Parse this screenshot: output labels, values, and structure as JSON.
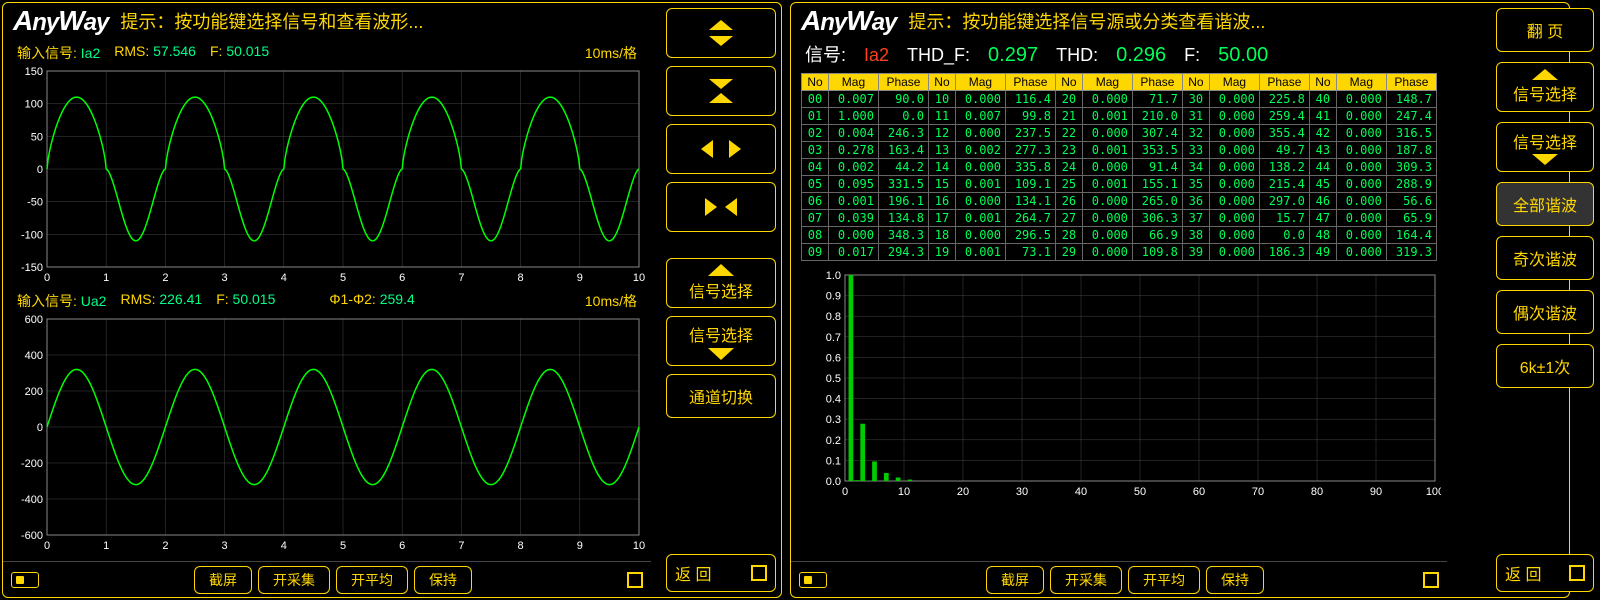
{
  "logo": "AnyWay",
  "left": {
    "hint": "提示：按功能键选择信号和查看波形...",
    "chart1": {
      "sig_label": "输入信号:",
      "sig": "Ia2",
      "rms_label": "RMS:",
      "rms": "57.546",
      "f_label": "F:",
      "f": "50.015",
      "timebase": "10ms/格",
      "ylim": [
        -150,
        150
      ],
      "ytick": 50,
      "xlim": [
        0,
        10
      ],
      "xtick": 1,
      "trace_color": "#00ff00",
      "type": "custom-wave",
      "amplitude": 110,
      "periods": 5
    },
    "chart2": {
      "sig_label": "输入信号:",
      "sig": "Ua2",
      "rms_label": "RMS:",
      "rms": "226.41",
      "f_label": "F:",
      "f": "50.015",
      "phase_label": "Φ1-Φ2:",
      "phase": "259.4",
      "timebase": "10ms/格",
      "ylim": [
        -600,
        600
      ],
      "ytick": 200,
      "xlim": [
        0,
        10
      ],
      "xtick": 1,
      "trace_color": "#00ff00",
      "type": "sine",
      "amplitude": 320,
      "periods": 5
    },
    "bottom": {
      "b1": "截屏",
      "b2": "开采集",
      "b3": "开平均",
      "b4": "保持"
    }
  },
  "mid_btns": {
    "sig_sel": "信号选择",
    "chan_sw": "通道切换",
    "back": "返    回"
  },
  "right": {
    "hint": "提示：按功能键选择信号源或分类查看谐波...",
    "summary": {
      "sig_lbl": "信号:",
      "sig": "Ia2",
      "thdf_lbl": "THD_F:",
      "thdf": "0.297",
      "thd_lbl": "THD:",
      "thd": "0.296",
      "f_lbl": "F:",
      "f": "50.00"
    },
    "table": {
      "cols": [
        "No",
        "Mag",
        "Phase"
      ],
      "groups": 5,
      "rows": [
        [
          [
            "00",
            "0.007",
            "90.0"
          ],
          [
            "10",
            "0.000",
            "116.4"
          ],
          [
            "20",
            "0.000",
            "71.7"
          ],
          [
            "30",
            "0.000",
            "225.8"
          ],
          [
            "40",
            "0.000",
            "148.7"
          ]
        ],
        [
          [
            "01",
            "1.000",
            "0.0"
          ],
          [
            "11",
            "0.007",
            "99.8"
          ],
          [
            "21",
            "0.001",
            "210.0"
          ],
          [
            "31",
            "0.000",
            "259.4"
          ],
          [
            "41",
            "0.000",
            "247.4"
          ]
        ],
        [
          [
            "02",
            "0.004",
            "246.3"
          ],
          [
            "12",
            "0.000",
            "237.5"
          ],
          [
            "22",
            "0.000",
            "307.4"
          ],
          [
            "32",
            "0.000",
            "355.4"
          ],
          [
            "42",
            "0.000",
            "316.5"
          ]
        ],
        [
          [
            "03",
            "0.278",
            "163.4"
          ],
          [
            "13",
            "0.002",
            "277.3"
          ],
          [
            "23",
            "0.001",
            "353.5"
          ],
          [
            "33",
            "0.000",
            "49.7"
          ],
          [
            "43",
            "0.000",
            "187.8"
          ]
        ],
        [
          [
            "04",
            "0.002",
            "44.2"
          ],
          [
            "14",
            "0.000",
            "335.8"
          ],
          [
            "24",
            "0.000",
            "91.4"
          ],
          [
            "34",
            "0.000",
            "138.2"
          ],
          [
            "44",
            "0.000",
            "309.3"
          ]
        ],
        [
          [
            "05",
            "0.095",
            "331.5"
          ],
          [
            "15",
            "0.001",
            "109.1"
          ],
          [
            "25",
            "0.001",
            "155.1"
          ],
          [
            "35",
            "0.000",
            "215.4"
          ],
          [
            "45",
            "0.000",
            "288.9"
          ]
        ],
        [
          [
            "06",
            "0.001",
            "196.1"
          ],
          [
            "16",
            "0.000",
            "134.1"
          ],
          [
            "26",
            "0.000",
            "265.0"
          ],
          [
            "36",
            "0.000",
            "297.0"
          ],
          [
            "46",
            "0.000",
            "56.6"
          ]
        ],
        [
          [
            "07",
            "0.039",
            "134.8"
          ],
          [
            "17",
            "0.001",
            "264.7"
          ],
          [
            "27",
            "0.000",
            "306.3"
          ],
          [
            "37",
            "0.000",
            "15.7"
          ],
          [
            "47",
            "0.000",
            "65.9"
          ]
        ],
        [
          [
            "08",
            "0.000",
            "348.3"
          ],
          [
            "18",
            "0.000",
            "296.5"
          ],
          [
            "28",
            "0.000",
            "66.9"
          ],
          [
            "38",
            "0.000",
            "0.0"
          ],
          [
            "48",
            "0.000",
            "164.4"
          ]
        ],
        [
          [
            "09",
            "0.017",
            "294.3"
          ],
          [
            "19",
            "0.001",
            "73.1"
          ],
          [
            "29",
            "0.000",
            "109.8"
          ],
          [
            "39",
            "0.000",
            "186.3"
          ],
          [
            "49",
            "0.000",
            "319.3"
          ]
        ]
      ]
    },
    "barchart": {
      "ylim": [
        0,
        1
      ],
      "ytick": 0.1,
      "xlim": [
        0,
        100
      ],
      "xtick": 10,
      "bars": [
        {
          "x": 1,
          "v": 1.0
        },
        {
          "x": 3,
          "v": 0.278
        },
        {
          "x": 5,
          "v": 0.095
        },
        {
          "x": 7,
          "v": 0.039
        },
        {
          "x": 9,
          "v": 0.017
        },
        {
          "x": 11,
          "v": 0.007
        },
        {
          "x": 2,
          "v": 0.004
        },
        {
          "x": 4,
          "v": 0.002
        }
      ],
      "bar_color": "#00cc00"
    },
    "bottom": {
      "b1": "截屏",
      "b2": "开采集",
      "b3": "开平均",
      "b4": "保持"
    }
  },
  "side": {
    "b1": "翻    页",
    "b2": "信号选择",
    "b3": "信号选择",
    "b4": "全部谐波",
    "b5": "奇次谐波",
    "b6": "偶次谐波",
    "b7": "6k±1次",
    "b8": "返    回"
  },
  "colors": {
    "gold": "#ffd700",
    "green": "#00ff55",
    "red": "#ff4020",
    "bg": "#000000",
    "grid": "#444444"
  }
}
